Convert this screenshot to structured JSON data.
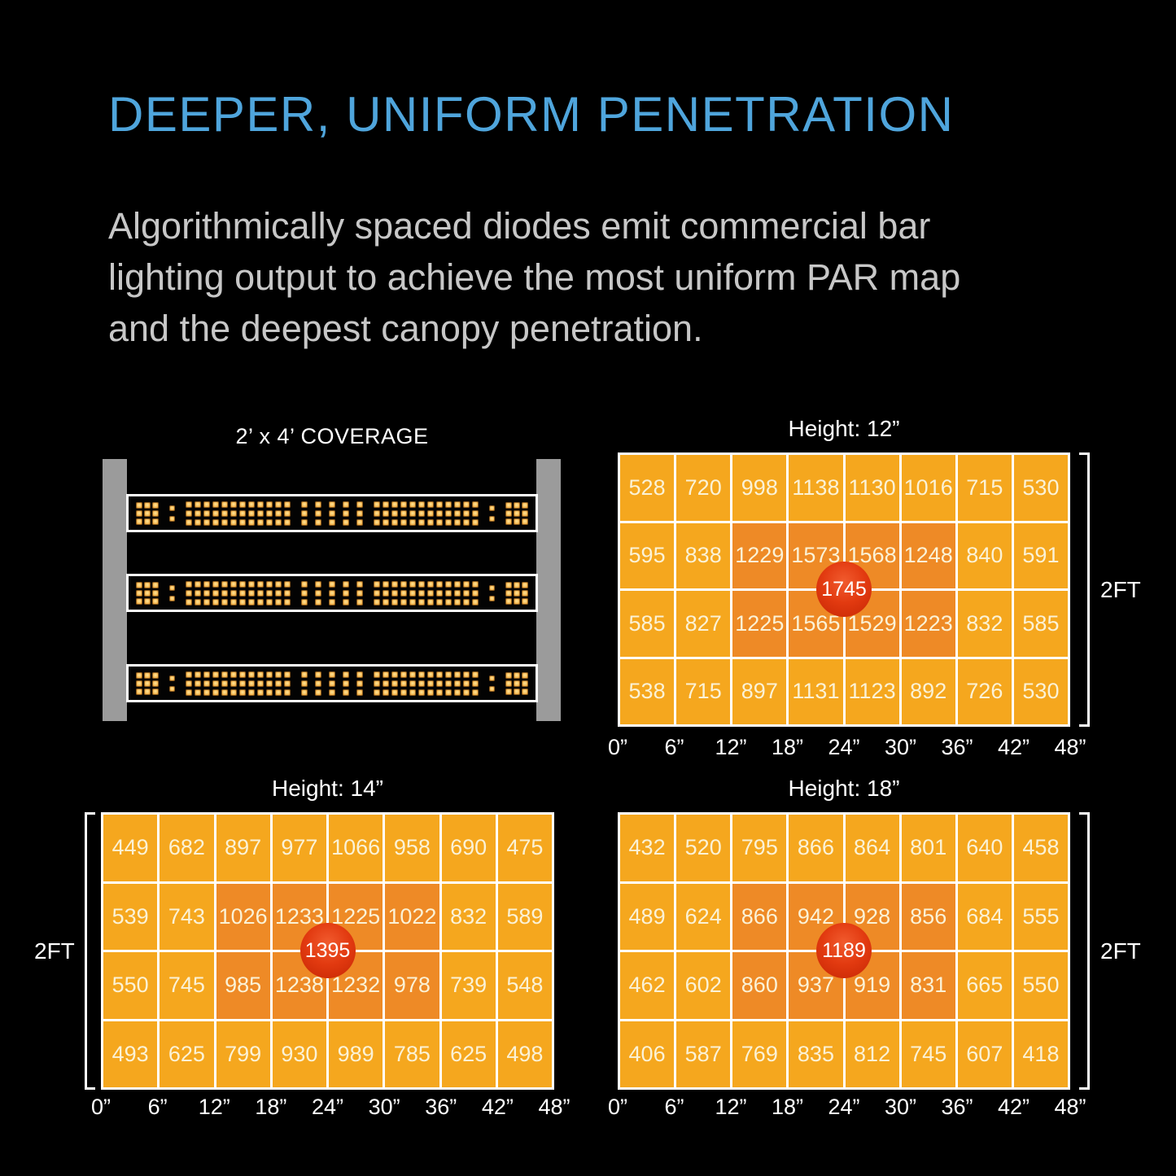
{
  "colors": {
    "background": "#000000",
    "title_blue": "#4FA5DC",
    "body_gray": "#C7C7C7",
    "cell_orange": "#F5A71E",
    "cell_hot_orange": "#EE8A26",
    "badge_red": "#E23A10",
    "cell_text_cream": "#FBF2D6",
    "rail_gray": "#9B9B9B",
    "diode_yellow": "#F2B14A",
    "white": "#FFFFFF"
  },
  "header": {
    "title": "DEEPER, UNIFORM PENETRATION",
    "body_lines": [
      "Algorithmically spaced diodes emit commercial bar",
      "lighting output to achieve the most uniform PAR map",
      "and the deepest canopy penetration."
    ]
  },
  "coverage": {
    "title": "2’ x 4’ COVERAGE",
    "bar_count": 3,
    "diode_segments": [
      "block3",
      "colon",
      "dense",
      "mid",
      "dense",
      "colon",
      "block3"
    ]
  },
  "chart_data": [
    {
      "type": "heatmap",
      "title": "Height: 12”",
      "x_labels": [
        "0”",
        "6”",
        "12”",
        "18”",
        "24”",
        "30”",
        "36”",
        "42”",
        "48”"
      ],
      "y_label": "2FT",
      "bracket_side": "right",
      "values": [
        [
          528,
          720,
          998,
          1138,
          1130,
          1016,
          715,
          530
        ],
        [
          595,
          838,
          1229,
          1573,
          1568,
          1248,
          840,
          591
        ],
        [
          585,
          827,
          1225,
          1565,
          1529,
          1223,
          832,
          585
        ],
        [
          538,
          715,
          897,
          1131,
          1123,
          892,
          726,
          530
        ]
      ],
      "hot_rows": [
        1,
        2
      ],
      "hot_cols": [
        2,
        3,
        4,
        5
      ],
      "peak": 1745
    },
    {
      "type": "heatmap",
      "title": "Height: 14”",
      "x_labels": [
        "0”",
        "6”",
        "12”",
        "18”",
        "24”",
        "30”",
        "36”",
        "42”",
        "48”"
      ],
      "y_label": "2FT",
      "bracket_side": "left",
      "values": [
        [
          449,
          682,
          897,
          977,
          1066,
          958,
          690,
          475
        ],
        [
          539,
          743,
          1026,
          1233,
          1225,
          1022,
          832,
          589
        ],
        [
          550,
          745,
          985,
          1238,
          1232,
          978,
          739,
          548
        ],
        [
          493,
          625,
          799,
          930,
          989,
          785,
          625,
          498
        ]
      ],
      "hot_rows": [
        1,
        2
      ],
      "hot_cols": [
        2,
        3,
        4,
        5
      ],
      "peak": 1395
    },
    {
      "type": "heatmap",
      "title": "Height: 18”",
      "x_labels": [
        "0”",
        "6”",
        "12”",
        "18”",
        "24”",
        "30”",
        "36”",
        "42”",
        "48”"
      ],
      "y_label": "2FT",
      "bracket_side": "right",
      "values": [
        [
          432,
          520,
          795,
          866,
          864,
          801,
          640,
          458
        ],
        [
          489,
          624,
          866,
          942,
          928,
          856,
          684,
          555
        ],
        [
          462,
          602,
          860,
          937,
          919,
          831,
          665,
          550
        ],
        [
          406,
          587,
          769,
          835,
          812,
          745,
          607,
          418
        ]
      ],
      "hot_rows": [
        1,
        2
      ],
      "hot_cols": [
        2,
        3,
        4,
        5
      ],
      "peak": 1189
    }
  ]
}
